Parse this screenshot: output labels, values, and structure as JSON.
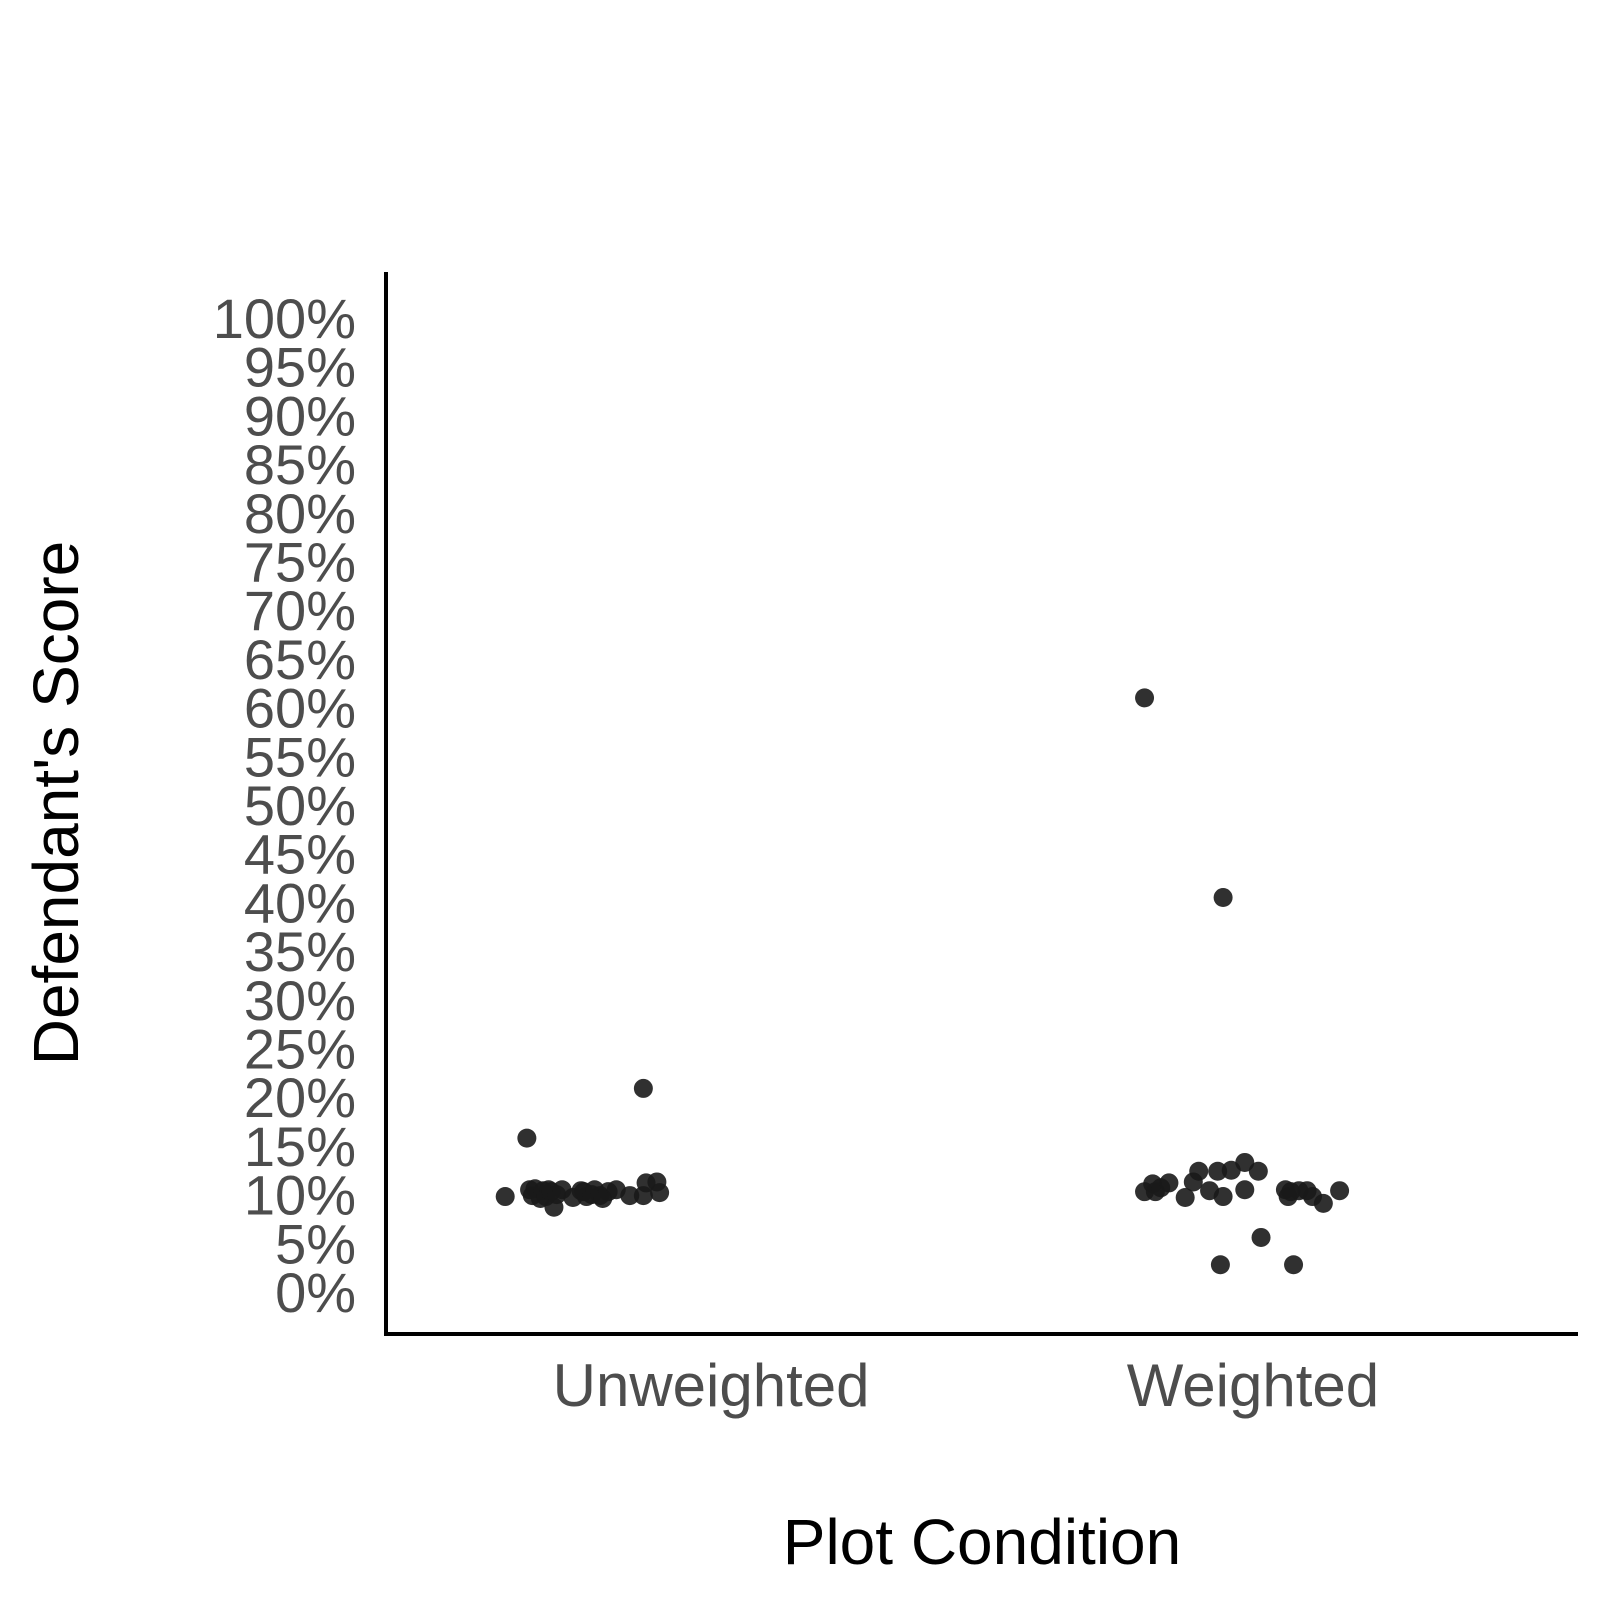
{
  "chart_data": {
    "type": "scatter",
    "xlabel": "Plot Condition",
    "ylabel": "Defendant's Score",
    "categories": [
      "Unweighted",
      "Weighted"
    ],
    "ylim": [
      0,
      100
    ],
    "y_ticks": [
      0,
      5,
      10,
      15,
      20,
      25,
      30,
      35,
      40,
      45,
      50,
      55,
      60,
      65,
      70,
      75,
      80,
      85,
      90,
      95,
      100
    ],
    "y_tick_labels": [
      "0%",
      "5%",
      "10%",
      "15%",
      "20%",
      "25%",
      "30%",
      "35%",
      "40%",
      "45%",
      "50%",
      "55%",
      "60%",
      "65%",
      "70%",
      "75%",
      "80%",
      "85%",
      "90%",
      "95%",
      "100%"
    ],
    "grid": false,
    "legend": "none",
    "point_color": "#1a1a1a",
    "points": [
      {
        "category": "Unweighted",
        "x": 0.62,
        "y": 9.8
      },
      {
        "category": "Unweighted",
        "x": 0.66,
        "y": 15.8
      },
      {
        "category": "Unweighted",
        "x": 0.665,
        "y": 10.5
      },
      {
        "category": "Unweighted",
        "x": 0.67,
        "y": 9.9
      },
      {
        "category": "Unweighted",
        "x": 0.675,
        "y": 10.6
      },
      {
        "category": "Unweighted",
        "x": 0.685,
        "y": 9.6
      },
      {
        "category": "Unweighted",
        "x": 0.69,
        "y": 10.4
      },
      {
        "category": "Unweighted",
        "x": 0.695,
        "y": 9.8
      },
      {
        "category": "Unweighted",
        "x": 0.7,
        "y": 10.5
      },
      {
        "category": "Unweighted",
        "x": 0.705,
        "y": 10.3
      },
      {
        "category": "Unweighted",
        "x": 0.71,
        "y": 8.7
      },
      {
        "category": "Unweighted",
        "x": 0.715,
        "y": 10.0
      },
      {
        "category": "Unweighted",
        "x": 0.725,
        "y": 10.5
      },
      {
        "category": "Unweighted",
        "x": 0.745,
        "y": 9.7
      },
      {
        "category": "Unweighted",
        "x": 0.76,
        "y": 10.4
      },
      {
        "category": "Unweighted",
        "x": 0.765,
        "y": 10.3
      },
      {
        "category": "Unweighted",
        "x": 0.77,
        "y": 9.8
      },
      {
        "category": "Unweighted",
        "x": 0.78,
        "y": 10.0
      },
      {
        "category": "Unweighted",
        "x": 0.785,
        "y": 10.5
      },
      {
        "category": "Unweighted",
        "x": 0.795,
        "y": 9.9
      },
      {
        "category": "Unweighted",
        "x": 0.8,
        "y": 9.6
      },
      {
        "category": "Unweighted",
        "x": 0.81,
        "y": 10.3
      },
      {
        "category": "Unweighted",
        "x": 0.825,
        "y": 10.5
      },
      {
        "category": "Unweighted",
        "x": 0.85,
        "y": 9.9
      },
      {
        "category": "Unweighted",
        "x": 0.875,
        "y": 9.9
      },
      {
        "category": "Unweighted",
        "x": 0.875,
        "y": 20.9
      },
      {
        "category": "Unweighted",
        "x": 0.88,
        "y": 11.2
      },
      {
        "category": "Unweighted",
        "x": 0.9,
        "y": 11.3
      },
      {
        "category": "Unweighted",
        "x": 0.905,
        "y": 10.2
      },
      {
        "category": "Weighted",
        "x": 1.8,
        "y": 10.3
      },
      {
        "category": "Weighted",
        "x": 1.8,
        "y": 61.0
      },
      {
        "category": "Weighted",
        "x": 1.815,
        "y": 11.1
      },
      {
        "category": "Weighted",
        "x": 1.82,
        "y": 10.3
      },
      {
        "category": "Weighted",
        "x": 1.83,
        "y": 10.7
      },
      {
        "category": "Weighted",
        "x": 1.845,
        "y": 11.2
      },
      {
        "category": "Weighted",
        "x": 1.875,
        "y": 9.7
      },
      {
        "category": "Weighted",
        "x": 1.89,
        "y": 11.3
      },
      {
        "category": "Weighted",
        "x": 1.9,
        "y": 12.4
      },
      {
        "category": "Weighted",
        "x": 1.92,
        "y": 10.4
      },
      {
        "category": "Weighted",
        "x": 1.935,
        "y": 12.4
      },
      {
        "category": "Weighted",
        "x": 1.94,
        "y": 2.8
      },
      {
        "category": "Weighted",
        "x": 1.945,
        "y": 40.5
      },
      {
        "category": "Weighted",
        "x": 1.945,
        "y": 9.8
      },
      {
        "category": "Weighted",
        "x": 1.96,
        "y": 12.5
      },
      {
        "category": "Weighted",
        "x": 1.985,
        "y": 10.5
      },
      {
        "category": "Weighted",
        "x": 1.985,
        "y": 13.3
      },
      {
        "category": "Weighted",
        "x": 2.01,
        "y": 12.4
      },
      {
        "category": "Weighted",
        "x": 2.015,
        "y": 5.6
      },
      {
        "category": "Weighted",
        "x": 2.06,
        "y": 10.5
      },
      {
        "category": "Weighted",
        "x": 2.065,
        "y": 9.8
      },
      {
        "category": "Weighted",
        "x": 2.07,
        "y": 10.3
      },
      {
        "category": "Weighted",
        "x": 2.075,
        "y": 2.8
      },
      {
        "category": "Weighted",
        "x": 2.085,
        "y": 10.4
      },
      {
        "category": "Weighted",
        "x": 2.1,
        "y": 10.4
      },
      {
        "category": "Weighted",
        "x": 2.11,
        "y": 9.8
      },
      {
        "category": "Weighted",
        "x": 2.13,
        "y": 9.1
      },
      {
        "category": "Weighted",
        "x": 2.16,
        "y": 10.4
      }
    ]
  }
}
